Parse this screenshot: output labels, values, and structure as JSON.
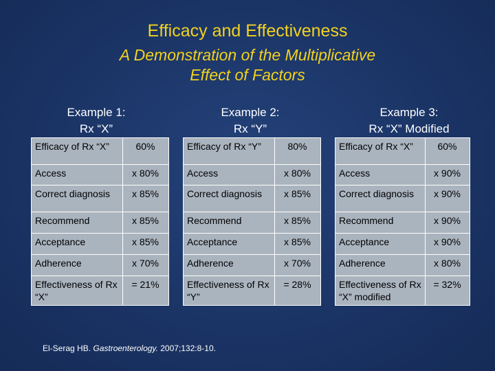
{
  "title": "Efficacy and Effectiveness",
  "subtitle_line1": "A Demonstration of the Multiplicative",
  "subtitle_line2": "Effect of Factors",
  "examples": [
    {
      "heading_line1": "Example 1:",
      "heading_line2": "Rx “X”",
      "rows": [
        {
          "label": "Efficacy of Rx “X”",
          "value": "60%"
        },
        {
          "label": "Access",
          "value": "x 80%"
        },
        {
          "label": "Correct diagnosis",
          "value": "x 85%"
        },
        {
          "label": "Recommend",
          "value": "x 85%"
        },
        {
          "label": "Acceptance",
          "value": "x 85%"
        },
        {
          "label": "Adherence",
          "value": "x 70%"
        },
        {
          "label": "Effectiveness of Rx “X”",
          "value": "= 21%"
        }
      ]
    },
    {
      "heading_line1": "Example 2:",
      "heading_line2": "Rx “Y”",
      "rows": [
        {
          "label": "Efficacy of Rx “Y”",
          "value": "80%"
        },
        {
          "label": "Access",
          "value": "x 80%"
        },
        {
          "label": "Correct diagnosis",
          "value": "x 85%"
        },
        {
          "label": "Recommend",
          "value": "x 85%"
        },
        {
          "label": "Acceptance",
          "value": "x 85%"
        },
        {
          "label": "Adherence",
          "value": "x 70%"
        },
        {
          "label": "Effectiveness of Rx “Y”",
          "value": "= 28%"
        }
      ]
    },
    {
      "heading_line1": "Example 3:",
      "heading_line2": "Rx “X” Modified",
      "rows": [
        {
          "label": "Efficacy of Rx “X”",
          "value": "60%"
        },
        {
          "label": "Access",
          "value": "x 90%"
        },
        {
          "label": "Correct diagnosis",
          "value": "x 90%"
        },
        {
          "label": "Recommend",
          "value": "x 90%"
        },
        {
          "label": "Acceptance",
          "value": "x 90%"
        },
        {
          "label": "Adherence",
          "value": "x 80%"
        },
        {
          "label": "Effectiveness of Rx “X” modified",
          "value": "= 32%"
        }
      ]
    }
  ],
  "citation": {
    "authors": "El-Serag HB.",
    "journal": "Gastroenterology.",
    "details": "2007;132:8-10."
  },
  "colors": {
    "background": "#1b3566",
    "title": "#f2d21f",
    "cell": "#aab4bf",
    "text": "#ffffff"
  }
}
